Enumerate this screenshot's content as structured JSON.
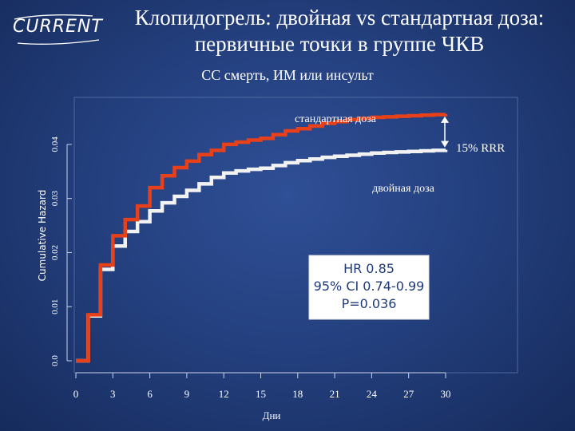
{
  "logo": {
    "text": "CURRENT"
  },
  "header": {
    "title_line1": "Клопидогрель: двойная vs стандартная доза:",
    "title_line2": "первичные точки в группе ЧКВ",
    "subtitle": "СС смерть, ИМ или инсульт"
  },
  "colors": {
    "standard_dose": "#e8411a",
    "double_dose": "#f2f2f2",
    "text": "#ffffff"
  },
  "chart_data": {
    "type": "line",
    "xlabel": "Дни",
    "ylabel": "Cumulative Hazard",
    "xlim": [
      0,
      30
    ],
    "ylim": [
      0,
      0.045
    ],
    "x_ticks": [
      0,
      3,
      6,
      9,
      12,
      15,
      18,
      21,
      24,
      27,
      30
    ],
    "x_tick_labels": [
      "0",
      "3",
      "6",
      "9",
      "12",
      "15",
      "18",
      "21",
      "24",
      "27",
      "30"
    ],
    "y_ticks": [
      0,
      0.01,
      0.02,
      0.03,
      0.04
    ],
    "y_tick_labels": [
      "0.0",
      "0.01",
      "0.02",
      "0.03",
      "0.04"
    ],
    "grid": false,
    "step": true,
    "series": [
      {
        "name": "стандартная доза",
        "color": "#e8411a",
        "x": [
          0,
          1,
          2,
          3,
          4,
          5,
          6,
          7,
          8,
          9,
          10,
          11,
          12,
          13,
          14,
          15,
          16,
          17,
          18,
          19,
          20,
          21,
          22,
          23,
          24,
          25,
          26,
          27,
          28,
          29,
          30
        ],
        "y": [
          0,
          0.0085,
          0.0177,
          0.0231,
          0.0261,
          0.0286,
          0.032,
          0.0342,
          0.0357,
          0.0369,
          0.0381,
          0.0389,
          0.04,
          0.0404,
          0.0408,
          0.0411,
          0.0418,
          0.0425,
          0.0429,
          0.0434,
          0.0439,
          0.0442,
          0.0446,
          0.0448,
          0.045,
          0.0451,
          0.0452,
          0.0453,
          0.0454,
          0.0455,
          0.0456
        ]
      },
      {
        "name": "двойная доза",
        "color": "#f2f2f2",
        "x": [
          0,
          1,
          2,
          3,
          4,
          5,
          6,
          7,
          8,
          9,
          10,
          11,
          12,
          13,
          14,
          15,
          16,
          17,
          18,
          19,
          20,
          21,
          22,
          23,
          24,
          25,
          26,
          27,
          28,
          29,
          30
        ],
        "y": [
          0,
          0.0083,
          0.0169,
          0.0212,
          0.0239,
          0.0257,
          0.0277,
          0.0292,
          0.0304,
          0.0315,
          0.0327,
          0.0339,
          0.0347,
          0.0351,
          0.0354,
          0.0356,
          0.0361,
          0.0366,
          0.037,
          0.0373,
          0.0376,
          0.0378,
          0.038,
          0.0382,
          0.0384,
          0.0385,
          0.0386,
          0.0387,
          0.0388,
          0.0389,
          0.039
        ]
      }
    ],
    "annotations": {
      "rrr": "15% RRR",
      "hr_line1": "HR 0.85",
      "hr_line2": "95% CI 0.74-0.99",
      "hr_line3": "P=0.036"
    }
  }
}
